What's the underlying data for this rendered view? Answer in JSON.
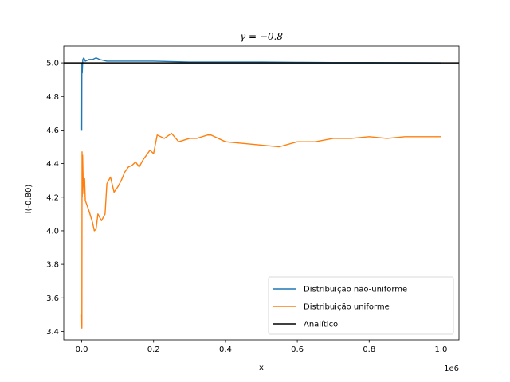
{
  "chart_data": {
    "type": "line",
    "title": "γ = −0.8",
    "xlabel": "x",
    "ylabel": "I(-0.80)",
    "x_offset_label": "1e6",
    "xlim": [
      -50000,
      1050000
    ],
    "ylim": [
      3.35,
      5.1
    ],
    "x_scale_display": 1000000,
    "xticks": [
      0,
      200000,
      400000,
      600000,
      800000,
      1000000
    ],
    "xtick_labels": [
      "0.0",
      "0.2",
      "0.4",
      "0.6",
      "0.8",
      "1.0"
    ],
    "yticks": [
      3.4,
      3.6,
      3.8,
      4.0,
      4.2,
      4.4,
      4.6,
      4.8,
      5.0
    ],
    "ytick_labels": [
      "3.4",
      "3.6",
      "3.8",
      "4.0",
      "4.2",
      "4.4",
      "4.6",
      "4.8",
      "5.0"
    ],
    "grid": false,
    "legend_position": "lower-right",
    "series": [
      {
        "name": "Distribuição não-uniforme",
        "color": "#1f77b4",
        "x": [
          0,
          500,
          1500,
          3000,
          6000,
          10000,
          20000,
          30000,
          40000,
          50000,
          70000,
          100000,
          150000,
          200000,
          300000,
          400000,
          500000,
          600000,
          700000,
          800000,
          900000,
          1000000
        ],
        "y": [
          4.6,
          5.0,
          4.94,
          5.02,
          5.03,
          5.01,
          5.02,
          5.02,
          5.03,
          5.02,
          5.01,
          5.01,
          5.01,
          5.01,
          5.005,
          5.005,
          5.005,
          5.003,
          5.002,
          5.002,
          5.001,
          5.0
        ]
      },
      {
        "name": "Distribuição uniforme",
        "color": "#ff7f0e",
        "x": [
          0,
          500,
          1000,
          1500,
          2500,
          4000,
          6000,
          8000,
          10000,
          15000,
          20000,
          30000,
          35000,
          40000,
          45000,
          55000,
          65000,
          70000,
          80000,
          90000,
          100000,
          110000,
          120000,
          130000,
          140000,
          150000,
          160000,
          170000,
          180000,
          190000,
          200000,
          210000,
          230000,
          250000,
          270000,
          300000,
          320000,
          350000,
          360000,
          400000,
          450000,
          500000,
          550000,
          600000,
          650000,
          700000,
          750000,
          800000,
          850000,
          900000,
          950000,
          1000000
        ],
        "y": [
          3.5,
          3.42,
          4.47,
          4.2,
          4.45,
          4.3,
          4.22,
          4.31,
          4.18,
          4.15,
          4.12,
          4.05,
          4.0,
          4.01,
          4.1,
          4.06,
          4.1,
          4.28,
          4.32,
          4.23,
          4.26,
          4.3,
          4.35,
          4.38,
          4.39,
          4.41,
          4.38,
          4.42,
          4.45,
          4.48,
          4.46,
          4.57,
          4.55,
          4.58,
          4.53,
          4.55,
          4.55,
          4.57,
          4.57,
          4.53,
          4.52,
          4.51,
          4.5,
          4.53,
          4.53,
          4.55,
          4.55,
          4.56,
          4.55,
          4.56,
          4.56,
          4.56
        ]
      },
      {
        "name": "Analítico",
        "color": "#000000",
        "x": [
          -50000,
          1050000
        ],
        "y": [
          5.0,
          5.0
        ]
      }
    ]
  }
}
